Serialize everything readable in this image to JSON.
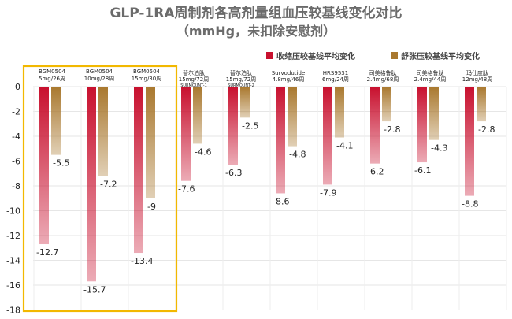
{
  "chart_data": {
    "type": "bar",
    "title": "GLP-1RA周制剂各高剂量组血压较基线变化对比",
    "subtitle": "（mmHg，未扣除安慰剂）",
    "xlabel": "",
    "ylabel": "",
    "ylim": [
      -18,
      0
    ],
    "yticks": [
      0,
      -2,
      -4,
      -6,
      -8,
      -10,
      -12,
      -14,
      -16,
      -18
    ],
    "grid": true,
    "legend_position": "top-right",
    "categories": [
      {
        "line1": "BGM0504",
        "line2": "5mg/26周",
        "line3": ""
      },
      {
        "line1": "BGM0504",
        "line2": "10mg/28周",
        "line3": ""
      },
      {
        "line1": "BGM0504",
        "line2": "15mg/30周",
        "line3": ""
      },
      {
        "line1": "替尔泊肽",
        "line2": "15mg/72周",
        "line3": "SURMOUNT-1"
      },
      {
        "line1": "替尔泊肽",
        "line2": "15mg/72周",
        "line3": "SURMOUNT-2"
      },
      {
        "line1": "Survodutide",
        "line2": "4.8mg/46周",
        "line3": ""
      },
      {
        "line1": "HRS9531",
        "line2": "6mg/24周",
        "line3": ""
      },
      {
        "line1": "司美格鲁肽",
        "line2": "2.4mg/68周",
        "line3": ""
      },
      {
        "line1": "司美格鲁肽",
        "line2": "2.4mg/44周",
        "line3": ""
      },
      {
        "line1": "玛仕度肽",
        "line2": "12mg/48周",
        "line3": ""
      }
    ],
    "series": [
      {
        "name": "收缩压较基线平均变化",
        "color": "#c8102e",
        "values": [
          -12.7,
          -15.7,
          -13.4,
          -7.6,
          -6.3,
          -8.6,
          -7.9,
          -6.2,
          -6.1,
          -8.8
        ]
      },
      {
        "name": "舒张压较基线平均变化",
        "color": "#a9782e",
        "values": [
          -5.5,
          -7.2,
          -9,
          -4.6,
          -2.5,
          -4.8,
          -4.1,
          -2.8,
          -4.3,
          -2.8
        ]
      }
    ],
    "value_labels": [
      [
        "-12.7",
        "-15.7",
        "-13.4",
        "-7.6",
        "-6.3",
        "-8.6",
        "-7.9",
        "-6.2",
        "-6.1",
        "-8.8"
      ],
      [
        "-5.5",
        "-7.2",
        "-9",
        "-4.6",
        "-2.5",
        "-4.8",
        "-4.1",
        "-2.8",
        "-4.3",
        "-2.8"
      ]
    ],
    "highlight_box_color": "#f2b800",
    "highlighted_categories": [
      0,
      1,
      2
    ]
  }
}
